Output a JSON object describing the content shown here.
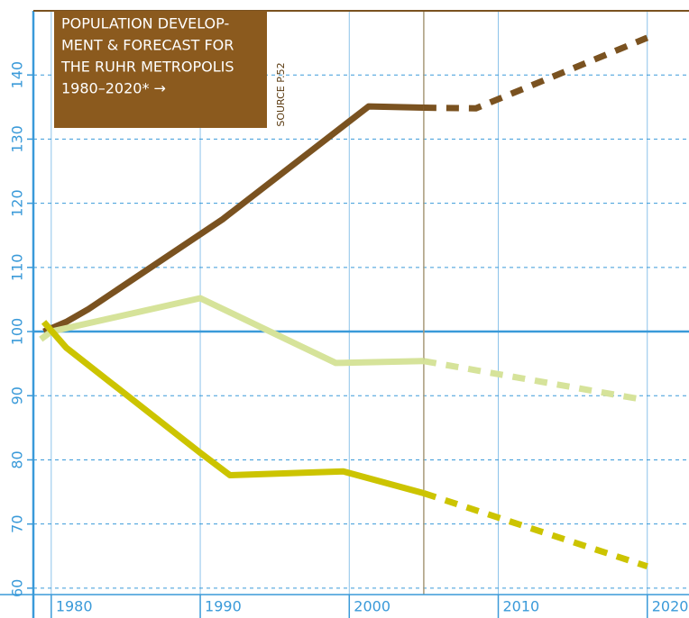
{
  "chart_data": {
    "type": "line",
    "title": [
      "POPULATION DEVELOP-",
      "MENT & FORECAST FOR",
      "THE RUHR METROPOLIS",
      "1980–2020* →"
    ],
    "source": "SOURCE P.52",
    "xlim": [
      1978.8,
      2022.8
    ],
    "xticks": [
      1980,
      1990,
      2000,
      2010,
      2020
    ],
    "ylim": [
      59,
      150
    ],
    "yticks": [
      60,
      70,
      80,
      90,
      100,
      110,
      120,
      130,
      140
    ],
    "grid": true,
    "reference_line": 100,
    "marker_line_x": 2005,
    "series": [
      {
        "color": "#7a5220",
        "dashed": false,
        "x": [
          1979.5,
          1981,
          1982.5,
          1991.5,
          2001.3,
          2005
        ],
        "values": [
          100,
          101.5,
          103.5,
          117.5,
          135.1,
          134.9
        ]
      },
      {
        "color": "#7a5220",
        "dashed": true,
        "x": [
          2005,
          2008.5,
          2020
        ],
        "values": [
          134.9,
          134.8,
          145.8
        ]
      },
      {
        "color": "#d6e39a",
        "dashed": false,
        "x": [
          1979.3,
          1980,
          1990,
          1999.1,
          2005
        ],
        "values": [
          98.8,
          100,
          105.2,
          95.1,
          95.4
        ]
      },
      {
        "color": "#d6e39a",
        "dashed": true,
        "x": [
          2005,
          2019.7
        ],
        "values": [
          95.4,
          89.4
        ]
      },
      {
        "color": "#ccc400",
        "dashed": false,
        "x": [
          1979.5,
          1981,
          1990,
          1992,
          1999.6,
          2005
        ],
        "values": [
          101.5,
          97.5,
          81.1,
          77.6,
          78.2,
          74.8
        ]
      },
      {
        "color": "#ccc400",
        "dashed": true,
        "x": [
          2005,
          2020
        ],
        "values": [
          74.8,
          63.4
        ]
      }
    ]
  }
}
